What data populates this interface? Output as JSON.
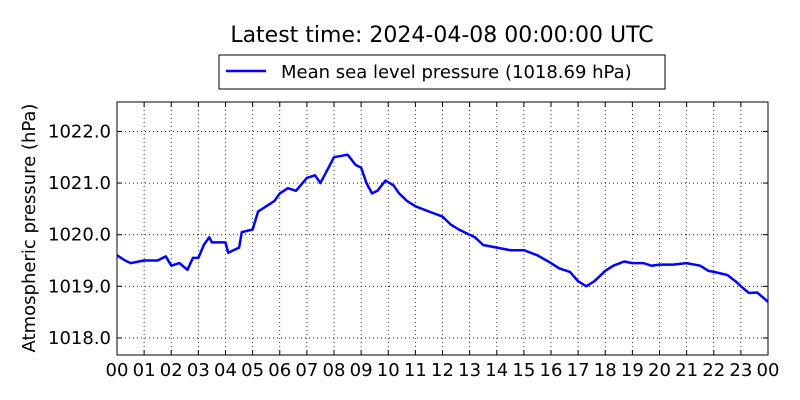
{
  "chart_data": {
    "type": "line",
    "title": "Latest time: 2024-04-08 00:00:00 UTC",
    "xlabel": "",
    "ylabel": "Atmospheric pressure (hPa)",
    "xlim": [
      0,
      24
    ],
    "ylim": [
      1017.67,
      1022.57
    ],
    "grid": true,
    "legend_placement": "top-center",
    "x_tick_values": [
      0,
      1,
      2,
      3,
      4,
      5,
      6,
      7,
      8,
      9,
      10,
      11,
      12,
      13,
      14,
      15,
      16,
      17,
      18,
      19,
      20,
      21,
      22,
      23,
      24
    ],
    "x_tick_labels": [
      "00",
      "01",
      "02",
      "03",
      "04",
      "05",
      "06",
      "07",
      "08",
      "09",
      "10",
      "11",
      "12",
      "13",
      "14",
      "15",
      "16",
      "17",
      "18",
      "19",
      "20",
      "21",
      "22",
      "23",
      "00"
    ],
    "y_tick_values": [
      1018,
      1019,
      1020,
      1021,
      1022
    ],
    "y_tick_labels": [
      "1018.0",
      "1019.0",
      "1020.0",
      "1021.0",
      "1022.0"
    ],
    "series": [
      {
        "name": "Mean sea level pressure (1018.69 hPa)",
        "color": "#0000ff",
        "x": [
          0,
          0.3,
          0.5,
          1,
          1.5,
          1.8,
          2.0,
          2.3,
          2.6,
          2.8,
          3.0,
          3.2,
          3.4,
          3.5,
          4.0,
          4.1,
          4.5,
          4.6,
          5.0,
          5.2,
          5.5,
          5.8,
          6.0,
          6.3,
          6.6,
          7.0,
          7.3,
          7.5,
          7.8,
          8.0,
          8.5,
          8.8,
          9.0,
          9.2,
          9.4,
          9.6,
          9.9,
          10.2,
          10.4,
          10.7,
          11.0,
          11.5,
          12.0,
          12.3,
          12.6,
          13.0,
          13.2,
          13.5,
          14.0,
          14.5,
          15.0,
          15.5,
          16.0,
          16.3,
          16.7,
          17.0,
          17.3,
          17.6,
          18.0,
          18.3,
          18.7,
          19.0,
          19.4,
          19.7,
          20.0,
          20.5,
          21.0,
          21.5,
          21.8,
          22.0,
          22.5,
          22.8,
          23.0,
          23.3,
          23.6,
          24.0
        ],
        "y": [
          1019.6,
          1019.5,
          1019.45,
          1019.5,
          1019.5,
          1019.58,
          1019.4,
          1019.45,
          1019.32,
          1019.55,
          1019.55,
          1019.8,
          1019.95,
          1019.85,
          1019.85,
          1019.65,
          1019.75,
          1020.05,
          1020.1,
          1020.45,
          1020.55,
          1020.65,
          1020.8,
          1020.9,
          1020.85,
          1021.1,
          1021.15,
          1021.0,
          1021.3,
          1021.5,
          1021.55,
          1021.35,
          1021.3,
          1021.0,
          1020.8,
          1020.85,
          1021.05,
          1020.95,
          1020.8,
          1020.65,
          1020.55,
          1020.45,
          1020.35,
          1020.2,
          1020.1,
          1020.0,
          1019.95,
          1019.8,
          1019.75,
          1019.7,
          1019.7,
          1019.6,
          1019.45,
          1019.35,
          1019.28,
          1019.1,
          1019.0,
          1019.1,
          1019.3,
          1019.4,
          1019.48,
          1019.45,
          1019.45,
          1019.4,
          1019.42,
          1019.42,
          1019.45,
          1019.4,
          1019.3,
          1019.28,
          1019.22,
          1019.1,
          1019.0,
          1018.87,
          1018.88,
          1018.7
        ]
      }
    ]
  }
}
